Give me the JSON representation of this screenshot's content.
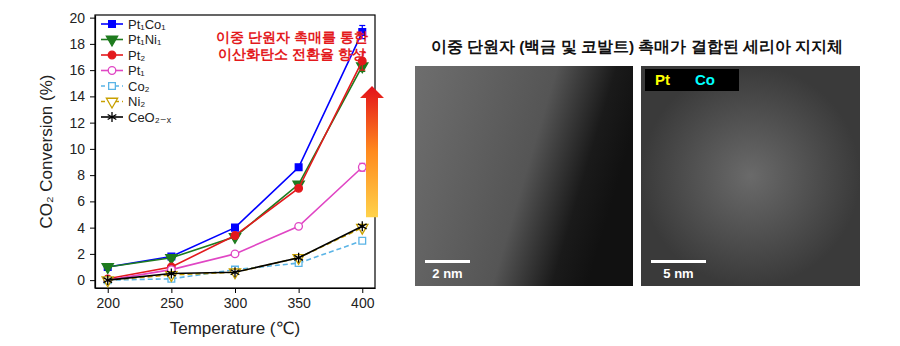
{
  "chart_data": {
    "type": "line",
    "x_label": "Temperature (℃)",
    "y_label": "CO₂ Conversion (%)",
    "x": [
      200,
      250,
      300,
      350,
      400
    ],
    "xlim": [
      190,
      410
    ],
    "xticks": [
      200,
      250,
      300,
      350,
      400
    ],
    "ylim": [
      -0.6,
      20.2
    ],
    "yticks": [
      0,
      2,
      4,
      6,
      8,
      10,
      12,
      14,
      16,
      18,
      20
    ],
    "grid": false,
    "legend": "upper left",
    "annotation": [
      "이중 단원자 촉매를 통한",
      "이산화탄소 전환율 향상"
    ],
    "series": [
      {
        "name": "Pt₁Co₁",
        "color": "#0000ff",
        "marker": "square",
        "line_style": "solid",
        "values": [
          1.0,
          1.8,
          4.0,
          8.6,
          18.9
        ],
        "errors": [
          0,
          0,
          0,
          0,
          0.5
        ]
      },
      {
        "name": "Pt₁Ni₁",
        "color": "#1e7b1e",
        "marker": "triangle-down",
        "line_style": "solid",
        "values": [
          1.0,
          1.7,
          3.3,
          7.3,
          16.3
        ],
        "errors": [
          0,
          0,
          0,
          0,
          0.4
        ]
      },
      {
        "name": "Pt₂",
        "color": "#e3191c",
        "marker": "circle",
        "line_style": "solid",
        "values": [
          0.1,
          1.0,
          3.4,
          7.0,
          16.7
        ],
        "errors": [
          0,
          0,
          0,
          0,
          0.7
        ]
      },
      {
        "name": "Pt₁",
        "color": "#e046c4",
        "marker": "circle-open",
        "line_style": "solid",
        "values": [
          0.0,
          0.8,
          2.0,
          4.1,
          8.6
        ],
        "errors": [
          0,
          0,
          0,
          0,
          0.3
        ]
      },
      {
        "name": "Co₂",
        "color": "#5ab4e6",
        "marker": "square-open",
        "line_style": "dashed",
        "values": [
          0.0,
          0.1,
          0.8,
          1.3,
          3.0
        ]
      },
      {
        "name": "Ni₂",
        "color": "#c8a000",
        "marker": "triangle-down-open",
        "line_style": "dashed",
        "values": [
          0.0,
          0.4,
          0.6,
          1.7,
          4.0
        ]
      },
      {
        "name": "CeO₂₋ₓ",
        "color": "#000000",
        "marker": "asterisk",
        "line_style": "solid",
        "values": [
          0.0,
          0.5,
          0.6,
          1.7,
          4.1
        ]
      }
    ]
  },
  "images": {
    "title": "이중 단원자 (백금 및 코발트) 촉매가 결합된 세리아 지지체",
    "panels": [
      {
        "scale_bar": "2 nm"
      },
      {
        "scale_bar": "5 nm",
        "legend": [
          {
            "label": "Pt",
            "color": "#ffff00"
          },
          {
            "label": "Co",
            "color": "#00ffff"
          }
        ]
      }
    ]
  }
}
